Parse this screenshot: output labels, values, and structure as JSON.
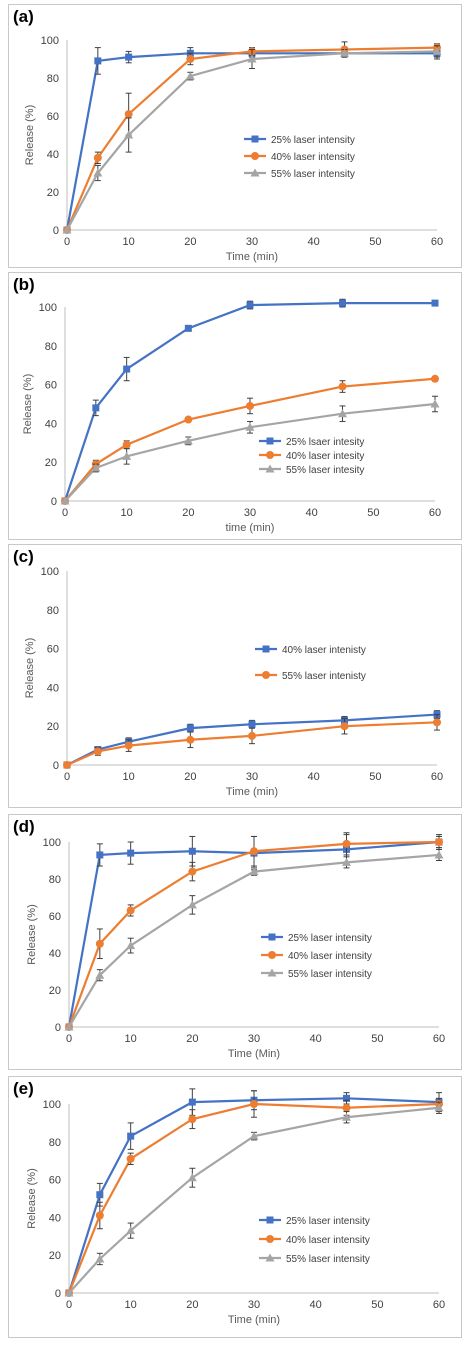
{
  "chart_data": [
    {
      "panel_label": "(a)",
      "type": "line",
      "x": [
        0,
        5,
        10,
        20,
        30,
        45,
        60
      ],
      "xlim": [
        0,
        60
      ],
      "ylim": [
        0,
        100
      ],
      "xticks": [
        0,
        10,
        20,
        30,
        40,
        50,
        60
      ],
      "yticks": [
        0,
        20,
        40,
        60,
        80,
        100
      ],
      "xlabel": "Time (min)",
      "ylabel": "Release (%)",
      "grid": false,
      "legend_position": "right",
      "series": [
        {
          "name": "25% laser intensity",
          "color": "#4472C4",
          "marker": "square",
          "values": [
            0,
            89,
            91,
            93,
            93,
            93,
            93
          ],
          "errors": [
            0,
            7,
            3,
            3,
            2,
            2,
            3
          ]
        },
        {
          "name": "40% laser intensity",
          "color": "#ED7D31",
          "marker": "circle",
          "values": [
            0,
            38,
            61,
            90,
            94,
            95,
            96
          ],
          "errors": [
            0,
            3,
            11,
            3,
            2,
            4,
            2
          ]
        },
        {
          "name": "55% laser intensity",
          "color": "#A5A5A5",
          "marker": "triangle",
          "values": [
            0,
            30,
            50,
            81,
            90,
            93,
            94
          ],
          "errors": [
            0,
            4,
            9,
            2,
            5,
            2,
            3
          ]
        }
      ]
    },
    {
      "panel_label": "(b)",
      "type": "line",
      "x": [
        0,
        5,
        10,
        20,
        30,
        45,
        60
      ],
      "xlim": [
        0,
        60
      ],
      "ylim": [
        0,
        100
      ],
      "xticks": [
        0,
        10,
        20,
        30,
        40,
        50,
        60
      ],
      "yticks": [
        0,
        20,
        40,
        60,
        80,
        100
      ],
      "xlabel": "time (min)",
      "ylabel": "Release (%)",
      "grid": false,
      "legend_position": "bottom-right",
      "series": [
        {
          "name": "25% lsaer intesity",
          "color": "#4472C4",
          "marker": "square",
          "values": [
            0,
            48,
            68,
            89,
            101,
            102,
            102
          ],
          "errors": [
            0,
            4,
            6,
            1,
            2,
            2,
            1
          ]
        },
        {
          "name": "40% laser intesity",
          "color": "#ED7D31",
          "marker": "circle",
          "values": [
            0,
            19,
            29,
            42,
            49,
            59,
            63
          ],
          "errors": [
            0,
            2,
            2,
            1,
            4,
            3,
            1
          ]
        },
        {
          "name": "55% laser intesity",
          "color": "#A5A5A5",
          "marker": "triangle",
          "values": [
            0,
            17,
            23,
            31,
            38,
            45,
            50
          ],
          "errors": [
            0,
            2,
            4,
            2,
            3,
            4,
            4
          ]
        }
      ]
    },
    {
      "panel_label": "(c)",
      "type": "line",
      "x": [
        0,
        5,
        10,
        20,
        30,
        45,
        60
      ],
      "xlim": [
        0,
        60
      ],
      "ylim": [
        0,
        100
      ],
      "xticks": [
        0,
        10,
        20,
        30,
        40,
        50,
        60
      ],
      "yticks": [
        0,
        20,
        40,
        60,
        80,
        100
      ],
      "xlabel": "Time (min)",
      "ylabel": "Release (%)",
      "grid": false,
      "legend_position": "top-right",
      "series": [
        {
          "name": "40% laser intenisty",
          "color": "#4472C4",
          "marker": "square",
          "values": [
            0,
            8,
            12,
            19,
            21,
            23,
            26
          ],
          "errors": [
            0,
            1,
            2,
            2,
            2,
            2,
            2
          ]
        },
        {
          "name": "55% laser intenisty",
          "color": "#ED7D31",
          "marker": "circle",
          "values": [
            0,
            7,
            10,
            13,
            15,
            20,
            22
          ],
          "errors": [
            0,
            2,
            3,
            4,
            4,
            4,
            4
          ]
        }
      ]
    },
    {
      "panel_label": "(d)",
      "type": "line",
      "x": [
        0,
        5,
        10,
        20,
        30,
        45,
        60
      ],
      "xlim": [
        0,
        60
      ],
      "ylim": [
        0,
        100
      ],
      "xticks": [
        0,
        10,
        20,
        30,
        40,
        50,
        60
      ],
      "yticks": [
        0,
        20,
        40,
        60,
        80,
        100
      ],
      "xlabel": "Time (Min)",
      "ylabel": "Release (%)",
      "grid": false,
      "legend_position": "right",
      "series": [
        {
          "name": "25% laser intensity",
          "color": "#4472C4",
          "marker": "square",
          "values": [
            0,
            93,
            94,
            95,
            94,
            96,
            100
          ],
          "errors": [
            0,
            6,
            6,
            8,
            9,
            8,
            4
          ]
        },
        {
          "name": "40% laser intensity",
          "color": "#ED7D31",
          "marker": "circle",
          "values": [
            0,
            45,
            63,
            84,
            95,
            99,
            100
          ],
          "errors": [
            0,
            8,
            3,
            5,
            8,
            6,
            3
          ]
        },
        {
          "name": "55% laser intensity",
          "color": "#A5A5A5",
          "marker": "triangle",
          "values": [
            0,
            28,
            44,
            66,
            84,
            89,
            93
          ],
          "errors": [
            0,
            3,
            4,
            5,
            2,
            3,
            3
          ]
        }
      ]
    },
    {
      "panel_label": "(e)",
      "type": "line",
      "x": [
        0,
        5,
        10,
        20,
        30,
        45,
        60
      ],
      "xlim": [
        0,
        60
      ],
      "ylim": [
        0,
        100
      ],
      "xticks": [
        0,
        10,
        20,
        30,
        40,
        50,
        60
      ],
      "yticks": [
        0,
        20,
        40,
        60,
        80,
        100
      ],
      "xlabel": "Time (min)",
      "ylabel": "Release (%)",
      "grid": false,
      "legend_position": "right",
      "series": [
        {
          "name": "25% laser intensity",
          "color": "#4472C4",
          "marker": "square",
          "values": [
            0,
            52,
            83,
            101,
            102,
            103,
            101
          ],
          "errors": [
            0,
            6,
            7,
            7,
            5,
            3,
            5
          ]
        },
        {
          "name": "40% laser intensity",
          "color": "#ED7D31",
          "marker": "circle",
          "values": [
            0,
            41,
            71,
            92,
            100,
            98,
            100
          ],
          "errors": [
            0,
            7,
            3,
            5,
            7,
            4,
            3
          ]
        },
        {
          "name": "55% laser intensity",
          "color": "#A5A5A5",
          "marker": "triangle",
          "values": [
            0,
            18,
            33,
            61,
            83,
            93,
            98
          ],
          "errors": [
            0,
            3,
            4,
            5,
            2,
            3,
            3
          ]
        }
      ]
    }
  ]
}
